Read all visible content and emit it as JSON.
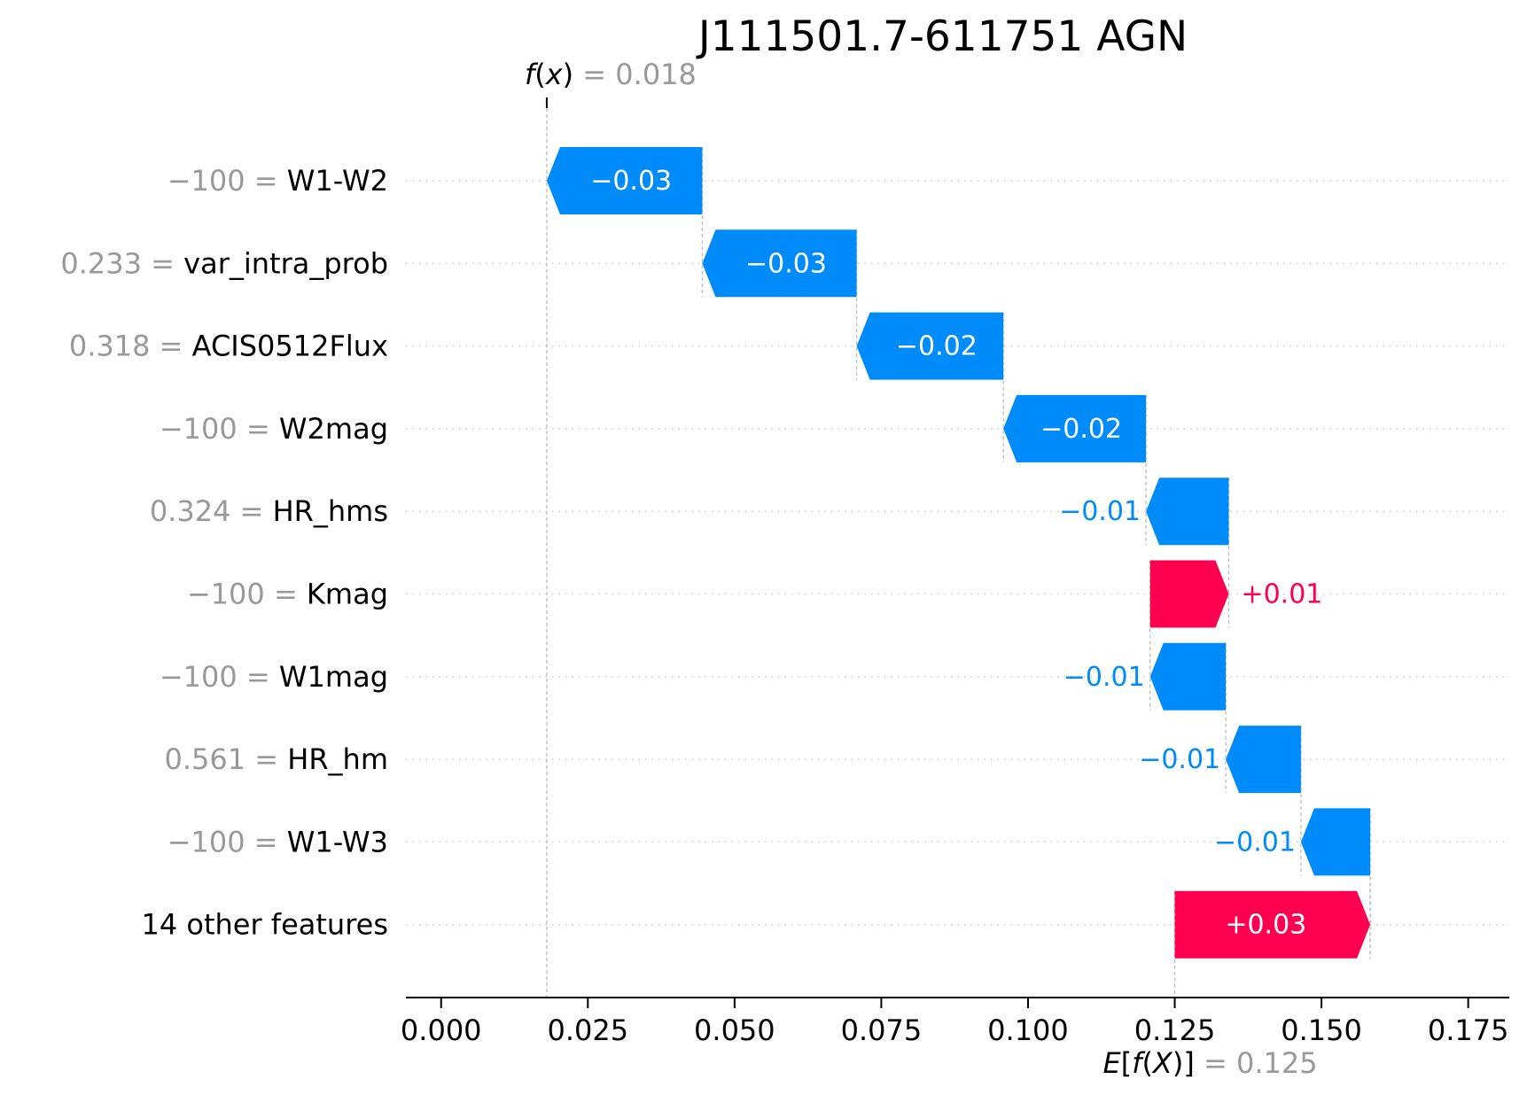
{
  "chart_data": {
    "type": "waterfall",
    "title": "J111501.7-611751 AGN",
    "fx_value": "0.018",
    "efx_value": "0.125",
    "base_value": 0.125,
    "final_value": 0.018,
    "xlim": [
      -0.006,
      0.182
    ],
    "xticks": [
      {
        "value": 0.0,
        "label": "0.000"
      },
      {
        "value": 0.025,
        "label": "0.025"
      },
      {
        "value": 0.05,
        "label": "0.050"
      },
      {
        "value": 0.075,
        "label": "0.075"
      },
      {
        "value": 0.1,
        "label": "0.100"
      },
      {
        "value": 0.125,
        "label": "0.125"
      },
      {
        "value": 0.15,
        "label": "0.150"
      },
      {
        "value": 0.175,
        "label": "0.175"
      }
    ],
    "features": [
      {
        "value_label": "−100",
        "name": "W1-W2",
        "start": 0.0445,
        "end": 0.018,
        "label": "−0.03"
      },
      {
        "value_label": "0.233",
        "name": "var_intra_prob",
        "start": 0.0708,
        "end": 0.0445,
        "label": "−0.03"
      },
      {
        "value_label": "0.318",
        "name": "ACIS0512Flux",
        "start": 0.0958,
        "end": 0.0708,
        "label": "−0.02"
      },
      {
        "value_label": "−100",
        "name": "W2mag",
        "start": 0.1201,
        "end": 0.0958,
        "label": "−0.02"
      },
      {
        "value_label": "0.324",
        "name": "HR_hms",
        "start": 0.1342,
        "end": 0.1201,
        "label": "−0.01"
      },
      {
        "value_label": "−100",
        "name": "Kmag",
        "start": 0.1208,
        "end": 0.1342,
        "label": "+0.01"
      },
      {
        "value_label": "−100",
        "name": "W1mag",
        "start": 0.1337,
        "end": 0.1208,
        "label": "−0.01"
      },
      {
        "value_label": "0.561",
        "name": "HR_hm",
        "start": 0.1465,
        "end": 0.1337,
        "label": "−0.01"
      },
      {
        "value_label": "−100",
        "name": "W1-W3",
        "start": 0.1583,
        "end": 0.1465,
        "label": "−0.01"
      },
      {
        "value_label": "",
        "name": "14 other features",
        "start": 0.125,
        "end": 0.1583,
        "label": "+0.03"
      }
    ],
    "colors": {
      "negative": "#008bfb",
      "positive": "#ff0051",
      "value_gray": "#999999",
      "guide": "#bbbbbb",
      "grid": "#cccccc"
    }
  }
}
